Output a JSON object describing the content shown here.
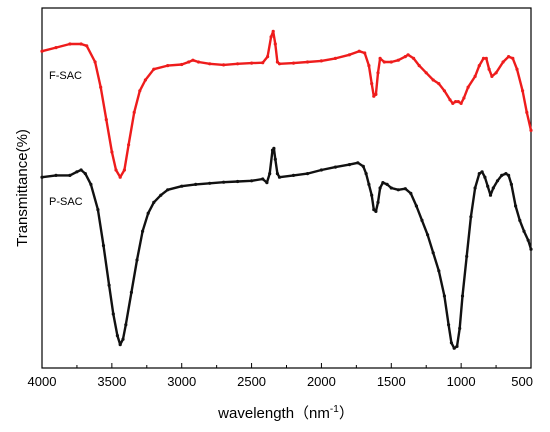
{
  "chart_data": {
    "type": "line",
    "xlabel_main": "wavelength（nm",
    "xlabel_sup": "-1",
    "xlabel_close": "）",
    "ylabel": "Transmittance(%)",
    "xlim": [
      4000,
      500
    ],
    "ylim": [
      0,
      100
    ],
    "x_ticks": [
      4000,
      3500,
      3000,
      2500,
      2000,
      1500,
      1000,
      500
    ],
    "x_tick_labels": [
      "4000",
      "3500",
      "3000",
      "2500",
      "2000",
      "1500",
      "1000",
      "500"
    ],
    "series": [
      {
        "name": "F-SAC",
        "color": "#ee1c1c",
        "points": [
          [
            4000,
            88
          ],
          [
            3900,
            89
          ],
          [
            3800,
            90
          ],
          [
            3720,
            90
          ],
          [
            3680,
            89.5
          ],
          [
            3620,
            85
          ],
          [
            3580,
            78
          ],
          [
            3540,
            69
          ],
          [
            3500,
            60
          ],
          [
            3470,
            55
          ],
          [
            3440,
            53
          ],
          [
            3410,
            55
          ],
          [
            3380,
            62
          ],
          [
            3340,
            71
          ],
          [
            3300,
            77
          ],
          [
            3260,
            80
          ],
          [
            3200,
            83
          ],
          [
            3100,
            84
          ],
          [
            3000,
            84.3
          ],
          [
            2950,
            85
          ],
          [
            2920,
            85.5
          ],
          [
            2880,
            85
          ],
          [
            2800,
            84.5
          ],
          [
            2700,
            84.2
          ],
          [
            2600,
            84.5
          ],
          [
            2500,
            84.7
          ],
          [
            2420,
            84.8
          ],
          [
            2385,
            86.5
          ],
          [
            2360,
            92
          ],
          [
            2345,
            93.5
          ],
          [
            2330,
            90
          ],
          [
            2315,
            85
          ],
          [
            2300,
            84.5
          ],
          [
            2200,
            84.7
          ],
          [
            2100,
            85
          ],
          [
            2000,
            85.3
          ],
          [
            1900,
            86
          ],
          [
            1800,
            87
          ],
          [
            1730,
            88
          ],
          [
            1690,
            87.5
          ],
          [
            1660,
            84
          ],
          [
            1640,
            79
          ],
          [
            1625,
            75.5
          ],
          [
            1610,
            76
          ],
          [
            1595,
            82
          ],
          [
            1580,
            86
          ],
          [
            1550,
            85
          ],
          [
            1500,
            85
          ],
          [
            1450,
            85.5
          ],
          [
            1400,
            86.5
          ],
          [
            1380,
            87
          ],
          [
            1340,
            86
          ],
          [
            1300,
            84
          ],
          [
            1250,
            82
          ],
          [
            1200,
            80
          ],
          [
            1160,
            79
          ],
          [
            1120,
            77
          ],
          [
            1080,
            74.5
          ],
          [
            1060,
            73.5
          ],
          [
            1040,
            74
          ],
          [
            1020,
            74
          ],
          [
            1000,
            73.5
          ],
          [
            980,
            75
          ],
          [
            950,
            78
          ],
          [
            900,
            81
          ],
          [
            870,
            84
          ],
          [
            840,
            86
          ],
          [
            820,
            86
          ],
          [
            800,
            83
          ],
          [
            780,
            81
          ],
          [
            750,
            82
          ],
          [
            700,
            85
          ],
          [
            660,
            86.5
          ],
          [
            630,
            86
          ],
          [
            600,
            83
          ],
          [
            560,
            77
          ],
          [
            530,
            71
          ],
          [
            500,
            66
          ]
        ]
      },
      {
        "name": "P-SAC",
        "color": "#111111",
        "points": [
          [
            4000,
            53
          ],
          [
            3900,
            53.5
          ],
          [
            3800,
            53.5
          ],
          [
            3750,
            54.5
          ],
          [
            3720,
            55
          ],
          [
            3690,
            54
          ],
          [
            3650,
            51
          ],
          [
            3600,
            44
          ],
          [
            3560,
            34
          ],
          [
            3520,
            23
          ],
          [
            3490,
            15
          ],
          [
            3460,
            9
          ],
          [
            3440,
            6.5
          ],
          [
            3420,
            8
          ],
          [
            3400,
            12
          ],
          [
            3360,
            21
          ],
          [
            3320,
            30
          ],
          [
            3280,
            38
          ],
          [
            3240,
            43
          ],
          [
            3200,
            46
          ],
          [
            3150,
            48
          ],
          [
            3100,
            49.5
          ],
          [
            3000,
            50.5
          ],
          [
            2900,
            51
          ],
          [
            2800,
            51.3
          ],
          [
            2700,
            51.6
          ],
          [
            2600,
            51.8
          ],
          [
            2500,
            52
          ],
          [
            2420,
            52.5
          ],
          [
            2390,
            51.5
          ],
          [
            2370,
            54
          ],
          [
            2350,
            60.5
          ],
          [
            2340,
            61
          ],
          [
            2330,
            58
          ],
          [
            2315,
            54
          ],
          [
            2300,
            53
          ],
          [
            2200,
            53.5
          ],
          [
            2100,
            54
          ],
          [
            2000,
            55
          ],
          [
            1900,
            55.8
          ],
          [
            1800,
            56.5
          ],
          [
            1740,
            57
          ],
          [
            1700,
            56
          ],
          [
            1680,
            54
          ],
          [
            1660,
            51
          ],
          [
            1640,
            48
          ],
          [
            1625,
            44
          ],
          [
            1610,
            43.5
          ],
          [
            1595,
            46
          ],
          [
            1580,
            50
          ],
          [
            1560,
            51.5
          ],
          [
            1530,
            51
          ],
          [
            1500,
            50
          ],
          [
            1450,
            49.5
          ],
          [
            1400,
            49.8
          ],
          [
            1360,
            48.5
          ],
          [
            1320,
            45
          ],
          [
            1280,
            41
          ],
          [
            1240,
            37
          ],
          [
            1200,
            32
          ],
          [
            1160,
            27
          ],
          [
            1120,
            20
          ],
          [
            1090,
            12
          ],
          [
            1070,
            7
          ],
          [
            1050,
            5.5
          ],
          [
            1030,
            6
          ],
          [
            1010,
            11
          ],
          [
            990,
            20
          ],
          [
            960,
            31
          ],
          [
            930,
            42
          ],
          [
            900,
            50
          ],
          [
            870,
            54
          ],
          [
            850,
            54.5
          ],
          [
            830,
            53
          ],
          [
            810,
            50.5
          ],
          [
            790,
            48
          ],
          [
            770,
            50
          ],
          [
            740,
            52
          ],
          [
            710,
            53.5
          ],
          [
            680,
            54
          ],
          [
            660,
            53.5
          ],
          [
            640,
            51
          ],
          [
            610,
            45
          ],
          [
            580,
            41
          ],
          [
            550,
            38
          ],
          [
            520,
            35.5
          ],
          [
            500,
            33
          ]
        ]
      }
    ]
  }
}
